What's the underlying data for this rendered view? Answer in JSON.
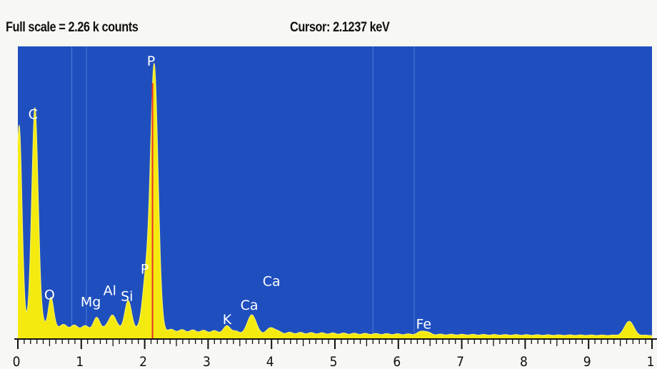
{
  "header": {
    "full_scale": "Full scale = 2.26 k counts",
    "cursor": "Cursor:  2.1237 keV"
  },
  "chart_data": {
    "type": "area",
    "title": "",
    "xlabel": "",
    "ylabel": "",
    "xlim": [
      0,
      10
    ],
    "ylim": [
      0,
      2260
    ],
    "x_ticks": [
      "0",
      "1",
      "2",
      "3",
      "4",
      "5",
      "6",
      "7",
      "8",
      "9",
      "1"
    ],
    "background_color": "#1f4fbf",
    "spectrum_color": "#f4ea10",
    "cursor_position_keV": 2.1237,
    "cursor_color": "#e8332a",
    "element_labels": [
      {
        "text": "C",
        "x": 0.24,
        "y": 1700
      },
      {
        "text": "P",
        "x": 2.1,
        "y": 2110
      },
      {
        "text": "O",
        "x": 0.5,
        "y": 300
      },
      {
        "text": "Mg",
        "x": 1.15,
        "y": 245
      },
      {
        "text": "Al",
        "x": 1.45,
        "y": 335
      },
      {
        "text": "Si",
        "x": 1.72,
        "y": 290
      },
      {
        "text": "P",
        "x": 2.0,
        "y": 500
      },
      {
        "text": "K",
        "x": 3.3,
        "y": 110
      },
      {
        "text": "Ca",
        "x": 3.65,
        "y": 220
      },
      {
        "text": "Ca",
        "x": 4.0,
        "y": 405
      },
      {
        "text": "Fe",
        "x": 6.4,
        "y": 75
      }
    ],
    "peaks": [
      {
        "x": 0.02,
        "y": 1520,
        "w": 0.045
      },
      {
        "x": 0.27,
        "y": 1680,
        "w": 0.05
      },
      {
        "x": 0.52,
        "y": 210,
        "w": 0.04
      },
      {
        "x": 1.25,
        "y": 70,
        "w": 0.05
      },
      {
        "x": 1.49,
        "y": 110,
        "w": 0.05
      },
      {
        "x": 1.74,
        "y": 210,
        "w": 0.055
      },
      {
        "x": 2.01,
        "y": 350,
        "w": 0.05
      },
      {
        "x": 2.15,
        "y": 2060,
        "w": 0.06
      },
      {
        "x": 3.31,
        "y": 45,
        "w": 0.05
      },
      {
        "x": 3.69,
        "y": 140,
        "w": 0.06
      },
      {
        "x": 4.01,
        "y": 40,
        "w": 0.06
      },
      {
        "x": 6.4,
        "y": 28,
        "w": 0.07
      },
      {
        "x": 9.64,
        "y": 110,
        "w": 0.07
      }
    ],
    "background": {
      "level": 100,
      "decay": 0.35,
      "floor": 20
    }
  }
}
